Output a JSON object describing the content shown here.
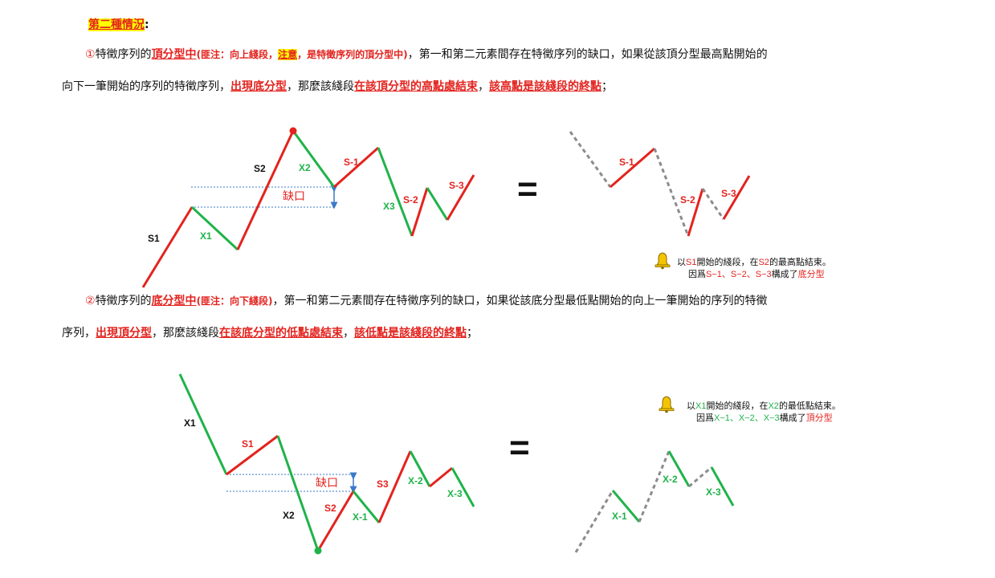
{
  "heading": {
    "title": "第二種情況",
    "colon": ":"
  },
  "para1": {
    "num": "①",
    "t1": "特徵序列的",
    "t2": "頂分型中",
    "n1": "(匪注：向上綫段，",
    "n2": "注意",
    "n3": "，是特徵序列的頂分型中)",
    "t3": "，第一和第二元素間存在特徵序列的缺口，如果從該頂分型最高點開始的",
    "t4": "向下一筆開始的序列的特徵序列，",
    "t5": "出現底分型",
    "t6": "，那麼該綫段",
    "t7": "在該頂分型的高點處結束",
    "t8": "，",
    "t9": "該高點是該綫段的終點",
    "t10": "；"
  },
  "para2": {
    "num": "②",
    "t1": "特徵序列的",
    "t2": "底分型中",
    "n1": "(匪注：向下綫段)",
    "t3": "，第一和第二元素間存在特徵序列的缺口，如果從該底分型最低點開始的向上一筆開始的序列的特徵",
    "t4": "序列，",
    "t5": "出現頂分型",
    "t6": "，那麼該綫段",
    "t7": "在該底分型的低點處結束",
    "t8": "，",
    "t9": "該低點是該綫段的終點",
    "t10": "；"
  },
  "diagram1": {
    "labels": {
      "s1": "S1",
      "x1": "X1",
      "s2": "S2",
      "x2": "X2",
      "gap": "缺口",
      "sm1": "S-1",
      "x3": "X3",
      "sm2": "S-2",
      "sm3": "S-3"
    },
    "equals": "=",
    "right": {
      "sm1": "S-1",
      "sm2": "S-2",
      "sm3": "S-3"
    },
    "note": {
      "l1a": "以",
      "l1b": "S1",
      "l1c": "開始的綫段，在",
      "l1d": "S2",
      "l1e": "的最高點結束。",
      "l2a": "因爲",
      "l2b": "S−1、S−2、S−3",
      "l2c": "構成了",
      "l2d": "底分型"
    }
  },
  "diagram2": {
    "labels": {
      "x1": "X1",
      "s1": "S1",
      "x2": "X2",
      "gap": "缺口",
      "s2": "S2",
      "xm1": "X-1",
      "s3": "S3",
      "xm2": "X-2",
      "xm3": "X-3"
    },
    "equals": "=",
    "right": {
      "xm1": "X-1",
      "xm2": "X-2",
      "xm3": "X-3"
    },
    "note": {
      "l1a": "以",
      "l1b": "X1",
      "l1c": "開始的綫段，在",
      "l1d": "X2",
      "l1e": "的最低點結束。",
      "l2a": "因爲",
      "l2b": "X−1、X−2、X−3",
      "l2c": "構成了",
      "l2d": "頂分型"
    }
  },
  "colors": {
    "red": "#e3231e",
    "green": "#1fb34a",
    "gray": "#8c8c8c",
    "gap_line": "#3a78c9",
    "highlight": "#ffff00"
  },
  "icons": [
    "bell-icon"
  ]
}
